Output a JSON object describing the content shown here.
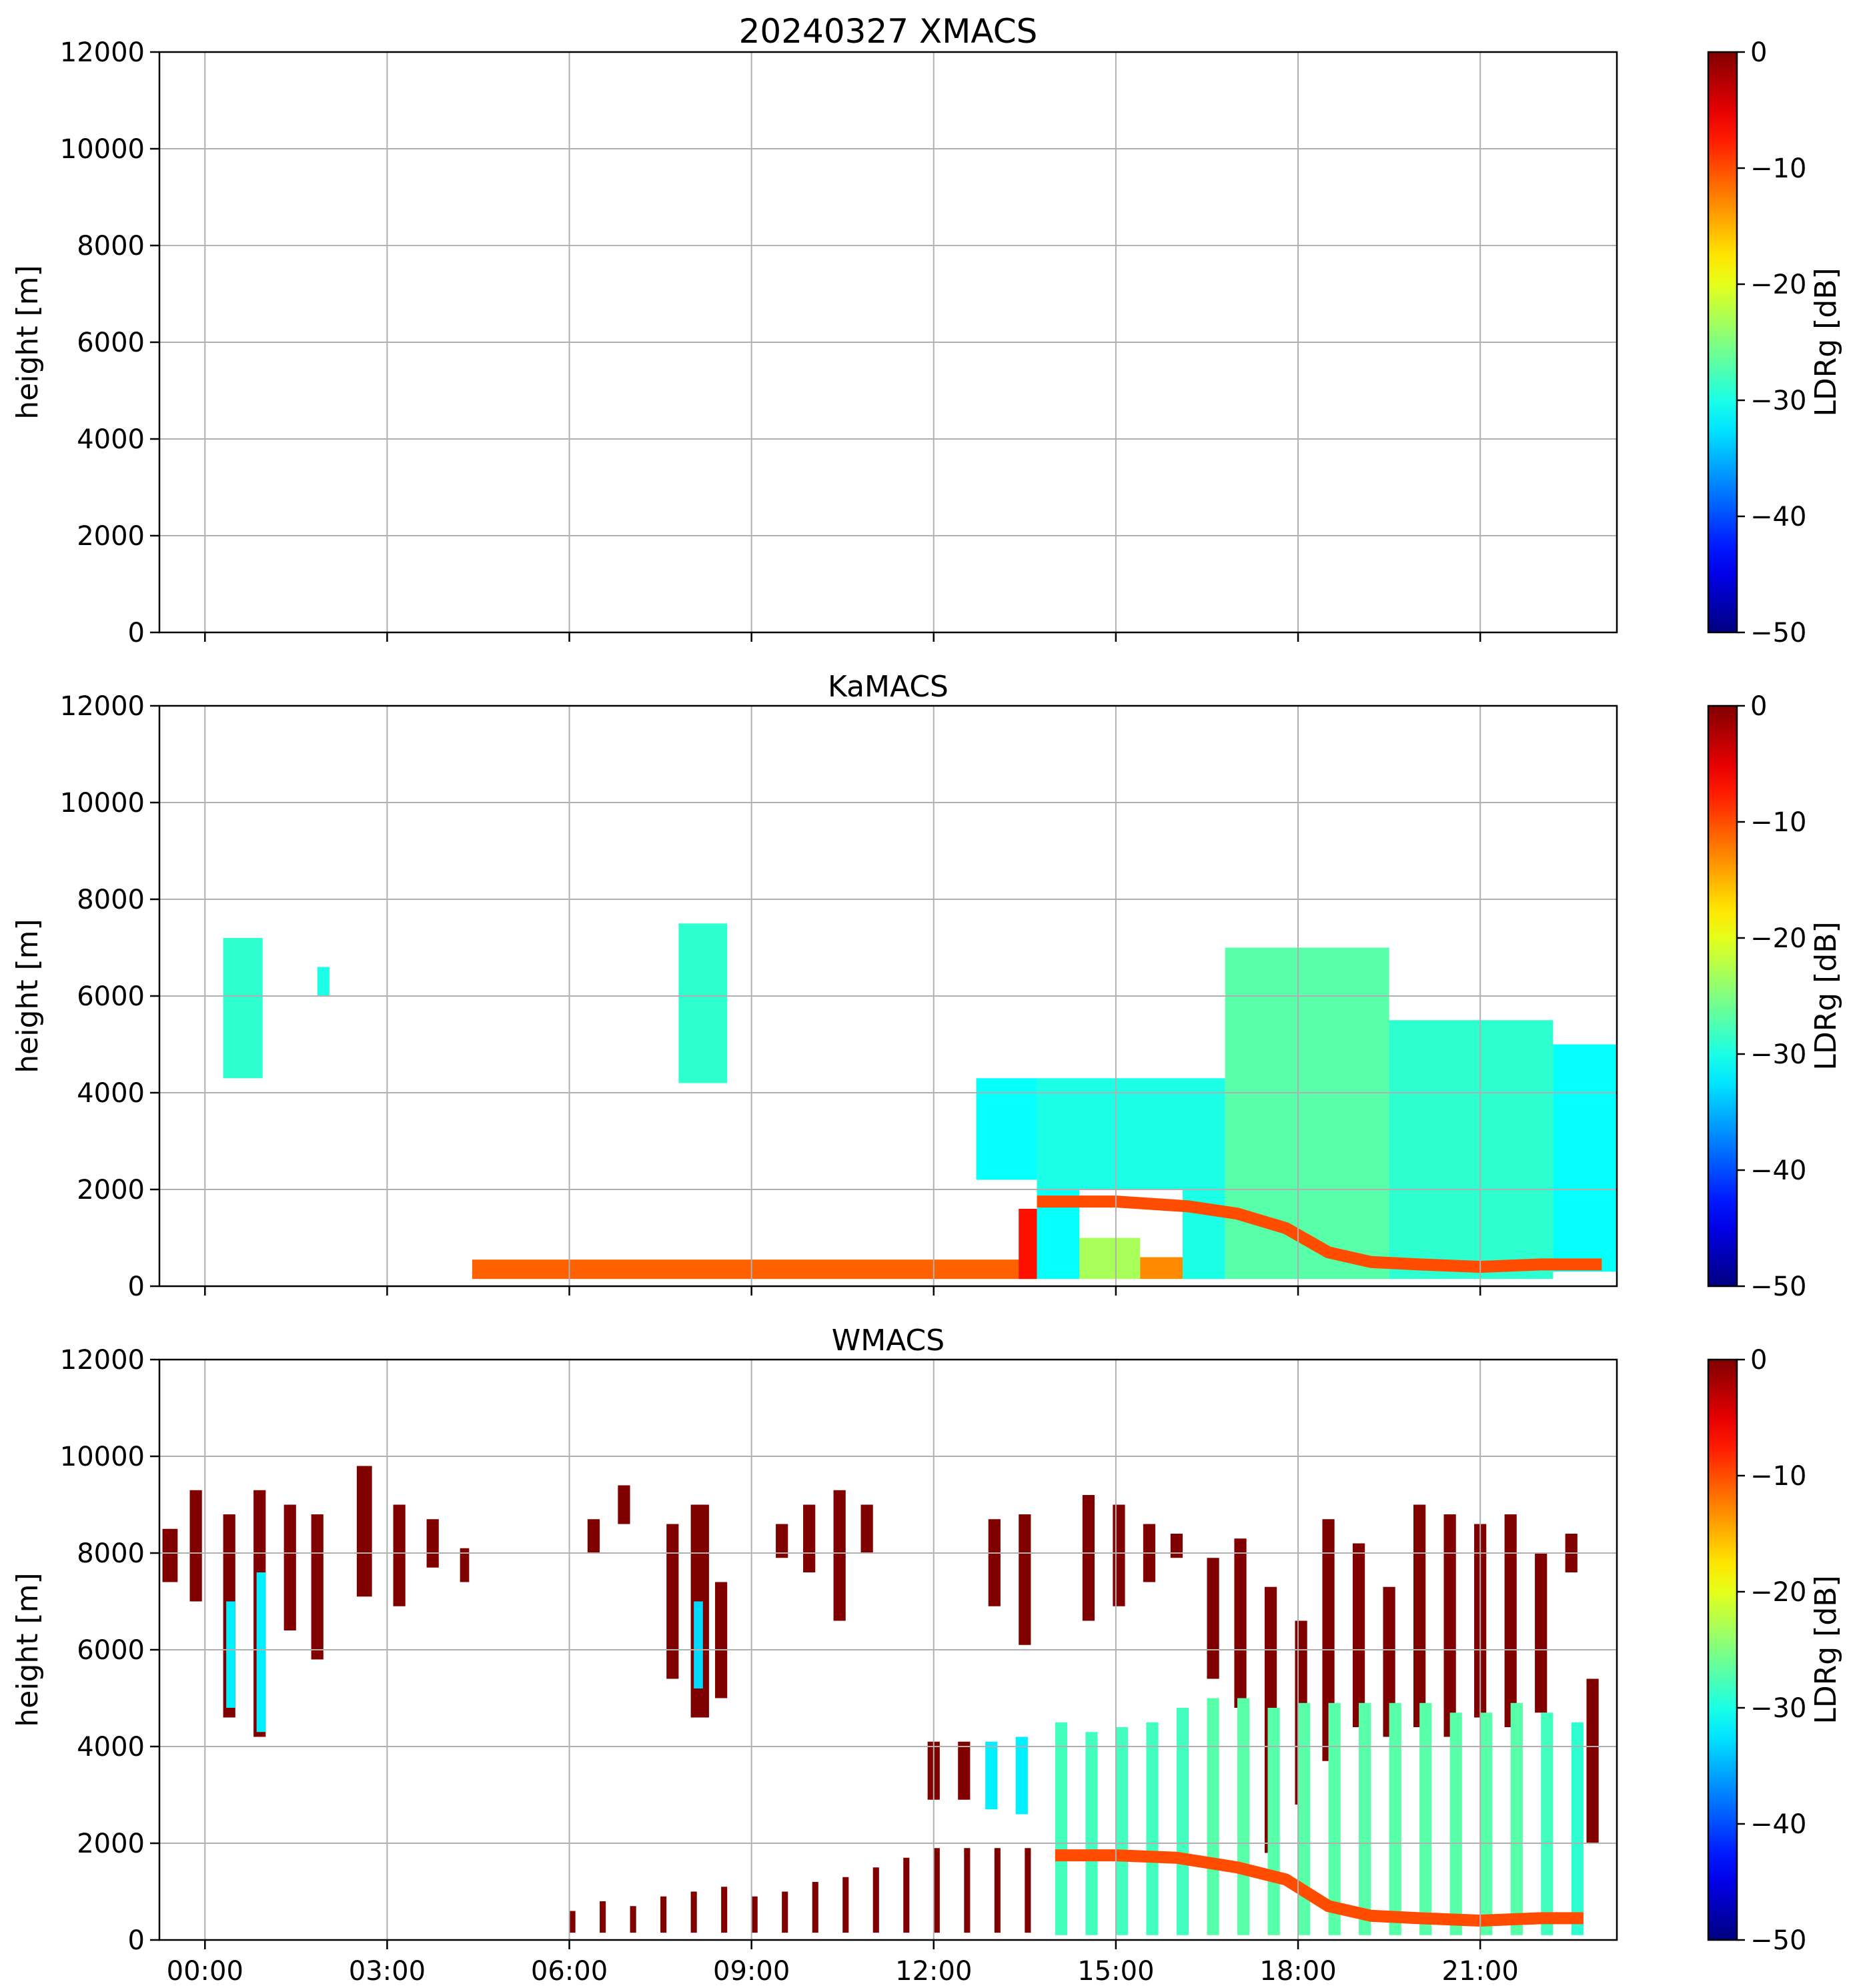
{
  "chart_data": [
    {
      "type": "heatmap",
      "title": "20240327 XMACS",
      "ylabel": "height [m]",
      "ylim": [
        0,
        12000
      ],
      "yticks": [
        "0",
        "2000",
        "4000",
        "6000",
        "8000",
        "10000",
        "12000"
      ],
      "xlim": [
        -0.75,
        23.25
      ],
      "grid": true,
      "colorbar": {
        "label": "LDRg [dB]",
        "range": [
          -50,
          0
        ],
        "ticks": [
          "−50",
          "−40",
          "−30",
          "−20",
          "−10",
          "0"
        ],
        "colormap": "jet"
      },
      "echoes": []
    },
    {
      "type": "heatmap",
      "title": "KaMACS",
      "ylabel": "height [m]",
      "ylim": [
        0,
        12000
      ],
      "yticks": [
        "0",
        "2000",
        "4000",
        "6000",
        "8000",
        "10000",
        "12000"
      ],
      "xlim": [
        -0.75,
        23.25
      ],
      "grid": true,
      "colorbar": {
        "label": "LDRg [dB]",
        "range": [
          -50,
          0
        ],
        "ticks": [
          "−50",
          "−40",
          "−30",
          "−20",
          "−10",
          "0"
        ],
        "colormap": "jet"
      },
      "echoes": [
        {
          "t0": 0.3,
          "t1": 0.95,
          "h0": 4300,
          "h1": 7200,
          "ldr": -29
        },
        {
          "t0": 1.85,
          "t1": 2.05,
          "h0": 6000,
          "h1": 6600,
          "ldr": -30
        },
        {
          "t0": 7.8,
          "t1": 8.6,
          "h0": 4200,
          "h1": 7500,
          "ldr": -29
        },
        {
          "t0": 4.4,
          "t1": 13.7,
          "h0": 150,
          "h1": 550,
          "ldr": -11
        },
        {
          "t0": 13.4,
          "t1": 13.7,
          "h0": 150,
          "h1": 1600,
          "ldr": -7
        },
        {
          "t0": 12.7,
          "t1": 13.7,
          "h0": 2200,
          "h1": 4300,
          "ldr": -31
        },
        {
          "t0": 13.7,
          "t1": 16.8,
          "h0": 2000,
          "h1": 4300,
          "ldr": -30
        },
        {
          "t0": 13.7,
          "t1": 14.4,
          "h0": 150,
          "h1": 2000,
          "ldr": -31
        },
        {
          "t0": 14.4,
          "t1": 15.4,
          "h0": 150,
          "h1": 1000,
          "ldr": -23
        },
        {
          "t0": 15.4,
          "t1": 16.1,
          "h0": 150,
          "h1": 600,
          "ldr": -13
        },
        {
          "t0": 16.1,
          "t1": 16.8,
          "h0": 150,
          "h1": 2000,
          "ldr": -30
        },
        {
          "t0": 16.8,
          "t1": 19.5,
          "h0": 150,
          "h1": 7000,
          "ldr": -27
        },
        {
          "t0": 19.5,
          "t1": 22.2,
          "h0": 150,
          "h1": 5500,
          "ldr": -29
        },
        {
          "t0": 22.2,
          "t1": 23.25,
          "h0": 300,
          "h1": 5000,
          "ldr": -31
        }
      ],
      "melting_layer": {
        "t": [
          13.7,
          15.0,
          16.2,
          17.0,
          17.8,
          18.5,
          19.2,
          20.0,
          21.0,
          22.0,
          23.0
        ],
        "h": [
          1750,
          1750,
          1650,
          1500,
          1200,
          700,
          500,
          450,
          400,
          450,
          450
        ],
        "ldr": -10
      }
    },
    {
      "type": "heatmap",
      "title": "WMACS",
      "ylabel": "height [m]",
      "ylim": [
        0,
        12000
      ],
      "yticks": [
        "0",
        "2000",
        "4000",
        "6000",
        "8000",
        "10000",
        "12000"
      ],
      "xlim": [
        -0.75,
        23.25
      ],
      "xticks": [
        "00:00",
        "03:00",
        "06:00",
        "09:00",
        "12:00",
        "15:00",
        "18:00",
        "21:00"
      ],
      "grid": true,
      "colorbar": {
        "label": "LDRg [dB]",
        "range": [
          -50,
          0
        ],
        "ticks": [
          "−50",
          "−40",
          "−30",
          "−20",
          "−10",
          "0"
        ],
        "colormap": "jet"
      },
      "echoes": [
        {
          "t0": -0.7,
          "t1": -0.45,
          "h0": 7400,
          "h1": 8500,
          "ldr": 0
        },
        {
          "t0": -0.25,
          "t1": -0.05,
          "h0": 7000,
          "h1": 9300,
          "ldr": 0
        },
        {
          "t0": 0.3,
          "t1": 0.5,
          "h0": 4600,
          "h1": 8800,
          "ldr": 0
        },
        {
          "t0": 0.8,
          "t1": 1.0,
          "h0": 4200,
          "h1": 9300,
          "ldr": 0
        },
        {
          "t0": 1.3,
          "t1": 1.5,
          "h0": 6400,
          "h1": 9000,
          "ldr": 0
        },
        {
          "t0": 1.75,
          "t1": 1.95,
          "h0": 5800,
          "h1": 8800,
          "ldr": 0
        },
        {
          "t0": 2.5,
          "t1": 2.75,
          "h0": 7100,
          "h1": 9800,
          "ldr": 0
        },
        {
          "t0": 3.1,
          "t1": 3.3,
          "h0": 6900,
          "h1": 9000,
          "ldr": 0
        },
        {
          "t0": 3.65,
          "t1": 3.85,
          "h0": 7700,
          "h1": 8700,
          "ldr": 0
        },
        {
          "t0": 4.2,
          "t1": 4.35,
          "h0": 7400,
          "h1": 8100,
          "ldr": 0
        },
        {
          "t0": 6.3,
          "t1": 6.5,
          "h0": 8000,
          "h1": 8700,
          "ldr": 0
        },
        {
          "t0": 6.8,
          "t1": 7.0,
          "h0": 8600,
          "h1": 9400,
          "ldr": 0
        },
        {
          "t0": 7.6,
          "t1": 7.8,
          "h0": 5400,
          "h1": 8600,
          "ldr": 0
        },
        {
          "t0": 8.0,
          "t1": 8.3,
          "h0": 4600,
          "h1": 9000,
          "ldr": 0
        },
        {
          "t0": 8.4,
          "t1": 8.6,
          "h0": 5000,
          "h1": 7400,
          "ldr": 0
        },
        {
          "t0": 9.4,
          "t1": 9.6,
          "h0": 7900,
          "h1": 8600,
          "ldr": 0
        },
        {
          "t0": 9.85,
          "t1": 10.05,
          "h0": 7600,
          "h1": 9000,
          "ldr": 0
        },
        {
          "t0": 10.35,
          "t1": 10.55,
          "h0": 6600,
          "h1": 9300,
          "ldr": 0
        },
        {
          "t0": 10.8,
          "t1": 11.0,
          "h0": 8000,
          "h1": 9000,
          "ldr": 0
        },
        {
          "t0": 11.9,
          "t1": 12.1,
          "h0": 2900,
          "h1": 4100,
          "ldr": 0
        },
        {
          "t0": 12.4,
          "t1": 12.6,
          "h0": 2900,
          "h1": 4100,
          "ldr": 0
        },
        {
          "t0": 12.9,
          "t1": 13.1,
          "h0": 6900,
          "h1": 8700,
          "ldr": 0
        },
        {
          "t0": 13.4,
          "t1": 13.6,
          "h0": 6100,
          "h1": 8800,
          "ldr": 0
        },
        {
          "t0": 14.45,
          "t1": 14.65,
          "h0": 6600,
          "h1": 9200,
          "ldr": 0
        },
        {
          "t0": 14.95,
          "t1": 15.15,
          "h0": 6900,
          "h1": 9000,
          "ldr": 0
        },
        {
          "t0": 15.45,
          "t1": 15.65,
          "h0": 7400,
          "h1": 8600,
          "ldr": 0
        },
        {
          "t0": 15.9,
          "t1": 16.1,
          "h0": 7900,
          "h1": 8400,
          "ldr": 0
        },
        {
          "t0": 16.5,
          "t1": 16.7,
          "h0": 5400,
          "h1": 7900,
          "ldr": 0
        },
        {
          "t0": 16.95,
          "t1": 17.15,
          "h0": 4800,
          "h1": 8300,
          "ldr": 0
        },
        {
          "t0": 17.45,
          "t1": 17.65,
          "h0": 1800,
          "h1": 7300,
          "ldr": 0
        },
        {
          "t0": 17.95,
          "t1": 18.15,
          "h0": 2800,
          "h1": 6600,
          "ldr": 0
        },
        {
          "t0": 18.4,
          "t1": 18.6,
          "h0": 3700,
          "h1": 8700,
          "ldr": 0
        },
        {
          "t0": 18.9,
          "t1": 19.1,
          "h0": 4400,
          "h1": 8200,
          "ldr": 0
        },
        {
          "t0": 19.4,
          "t1": 19.6,
          "h0": 4200,
          "h1": 7300,
          "ldr": 0
        },
        {
          "t0": 19.9,
          "t1": 20.1,
          "h0": 4400,
          "h1": 9000,
          "ldr": 0
        },
        {
          "t0": 20.4,
          "t1": 20.6,
          "h0": 4200,
          "h1": 8800,
          "ldr": 0
        },
        {
          "t0": 20.9,
          "t1": 21.1,
          "h0": 4600,
          "h1": 8600,
          "ldr": 0
        },
        {
          "t0": 21.4,
          "t1": 21.6,
          "h0": 4400,
          "h1": 8800,
          "ldr": 0
        },
        {
          "t0": 21.9,
          "t1": 22.1,
          "h0": 4700,
          "h1": 8000,
          "ldr": 0
        },
        {
          "t0": 22.4,
          "t1": 22.6,
          "h0": 7600,
          "h1": 8400,
          "ldr": 0
        },
        {
          "t0": 22.75,
          "t1": 22.95,
          "h0": 2000,
          "h1": 5400,
          "ldr": 0
        },
        {
          "t0": 0.35,
          "t1": 0.5,
          "h0": 4800,
          "h1": 7000,
          "ldr": -32
        },
        {
          "t0": 0.85,
          "t1": 1.0,
          "h0": 4300,
          "h1": 7600,
          "ldr": -32
        },
        {
          "t0": 8.05,
          "t1": 8.2,
          "h0": 5200,
          "h1": 7000,
          "ldr": -33
        },
        {
          "t0": 12.85,
          "t1": 13.05,
          "h0": 2700,
          "h1": 4100,
          "ldr": -32
        },
        {
          "t0": 13.35,
          "t1": 13.55,
          "h0": 2600,
          "h1": 4200,
          "ldr": -32
        },
        {
          "t0": 14.0,
          "t1": 14.2,
          "h0": 100,
          "h1": 4500,
          "ldr": -28
        },
        {
          "t0": 14.5,
          "t1": 14.7,
          "h0": 100,
          "h1": 4300,
          "ldr": -28
        },
        {
          "t0": 15.0,
          "t1": 15.2,
          "h0": 100,
          "h1": 4400,
          "ldr": -28
        },
        {
          "t0": 15.5,
          "t1": 15.7,
          "h0": 100,
          "h1": 4500,
          "ldr": -28
        },
        {
          "t0": 16.0,
          "t1": 16.2,
          "h0": 100,
          "h1": 4800,
          "ldr": -28
        },
        {
          "t0": 16.5,
          "t1": 16.7,
          "h0": 100,
          "h1": 5000,
          "ldr": -27
        },
        {
          "t0": 17.0,
          "t1": 17.2,
          "h0": 100,
          "h1": 5000,
          "ldr": -27
        },
        {
          "t0": 17.5,
          "t1": 17.7,
          "h0": 100,
          "h1": 4800,
          "ldr": -27
        },
        {
          "t0": 18.0,
          "t1": 18.2,
          "h0": 100,
          "h1": 4900,
          "ldr": -27
        },
        {
          "t0": 18.5,
          "t1": 18.7,
          "h0": 100,
          "h1": 4900,
          "ldr": -27
        },
        {
          "t0": 19.0,
          "t1": 19.2,
          "h0": 100,
          "h1": 4900,
          "ldr": -27
        },
        {
          "t0": 19.5,
          "t1": 19.7,
          "h0": 100,
          "h1": 4900,
          "ldr": -27
        },
        {
          "t0": 20.0,
          "t1": 20.2,
          "h0": 100,
          "h1": 4900,
          "ldr": -27
        },
        {
          "t0": 20.5,
          "t1": 20.7,
          "h0": 100,
          "h1": 4700,
          "ldr": -27
        },
        {
          "t0": 21.0,
          "t1": 21.2,
          "h0": 100,
          "h1": 4700,
          "ldr": -27
        },
        {
          "t0": 21.5,
          "t1": 21.7,
          "h0": 100,
          "h1": 4900,
          "ldr": -27
        },
        {
          "t0": 22.0,
          "t1": 22.2,
          "h0": 100,
          "h1": 4700,
          "ldr": -28
        },
        {
          "t0": 22.5,
          "t1": 22.7,
          "h0": 100,
          "h1": 4500,
          "ldr": -29
        },
        {
          "t0": 6.0,
          "t1": 6.1,
          "h0": 150,
          "h1": 600,
          "ldr": 0
        },
        {
          "t0": 6.5,
          "t1": 6.6,
          "h0": 150,
          "h1": 800,
          "ldr": 0
        },
        {
          "t0": 7.0,
          "t1": 7.1,
          "h0": 150,
          "h1": 700,
          "ldr": 0
        },
        {
          "t0": 7.5,
          "t1": 7.6,
          "h0": 150,
          "h1": 900,
          "ldr": 0
        },
        {
          "t0": 8.0,
          "t1": 8.1,
          "h0": 150,
          "h1": 1000,
          "ldr": 0
        },
        {
          "t0": 8.5,
          "t1": 8.6,
          "h0": 150,
          "h1": 1100,
          "ldr": 0
        },
        {
          "t0": 9.0,
          "t1": 9.1,
          "h0": 150,
          "h1": 900,
          "ldr": 0
        },
        {
          "t0": 9.5,
          "t1": 9.6,
          "h0": 150,
          "h1": 1000,
          "ldr": 0
        },
        {
          "t0": 10.0,
          "t1": 10.1,
          "h0": 150,
          "h1": 1200,
          "ldr": 0
        },
        {
          "t0": 10.5,
          "t1": 10.6,
          "h0": 150,
          "h1": 1300,
          "ldr": 0
        },
        {
          "t0": 11.0,
          "t1": 11.1,
          "h0": 150,
          "h1": 1500,
          "ldr": 0
        },
        {
          "t0": 11.5,
          "t1": 11.6,
          "h0": 150,
          "h1": 1700,
          "ldr": 0
        },
        {
          "t0": 12.0,
          "t1": 12.1,
          "h0": 150,
          "h1": 1900,
          "ldr": 0
        },
        {
          "t0": 12.5,
          "t1": 12.6,
          "h0": 150,
          "h1": 1900,
          "ldr": 0
        },
        {
          "t0": 13.0,
          "t1": 13.1,
          "h0": 150,
          "h1": 1900,
          "ldr": 0
        },
        {
          "t0": 13.5,
          "t1": 13.6,
          "h0": 150,
          "h1": 1900,
          "ldr": 0
        }
      ],
      "melting_layer": {
        "t": [
          14.0,
          15.0,
          16.0,
          17.0,
          17.8,
          18.5,
          19.2,
          20.0,
          21.0,
          22.0,
          22.7
        ],
        "h": [
          1750,
          1750,
          1700,
          1500,
          1250,
          700,
          500,
          450,
          400,
          450,
          450
        ],
        "ldr": -10
      }
    }
  ]
}
